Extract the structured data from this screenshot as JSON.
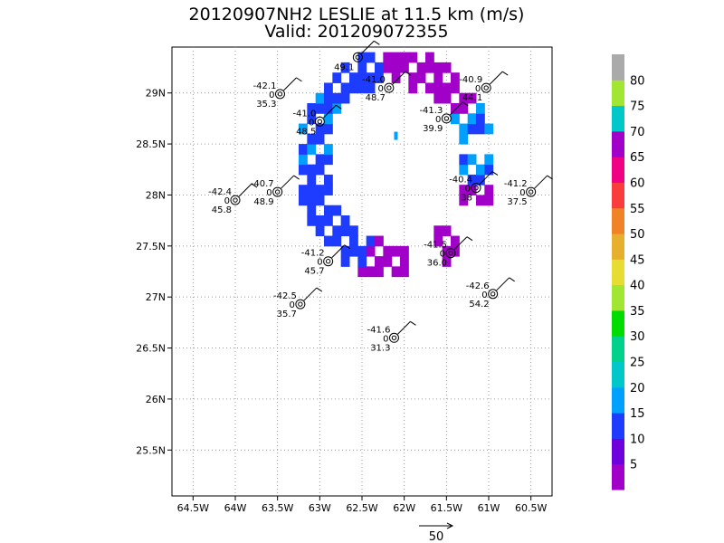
{
  "title_line1": "20120907NH2 LESLIE at 11.5 km (m/s)",
  "title_line2": "Valid: 201209072355",
  "chart_data": {
    "type": "heatmap",
    "description_units": "m/s",
    "x_axis": {
      "ticks": [
        -64.5,
        -64,
        -63.5,
        -63,
        -62.5,
        -62,
        -61.5,
        -61,
        -60.5
      ],
      "labels": [
        "64.5W",
        "64W",
        "63.5W",
        "63W",
        "62.5W",
        "62W",
        "61.5W",
        "61W",
        "60.5W"
      ],
      "range": [
        -64.75,
        -60.25
      ]
    },
    "y_axis": {
      "ticks": [
        25.5,
        26,
        26.5,
        27,
        27.5,
        28,
        28.5,
        29
      ],
      "labels": [
        "25.5N",
        "26N",
        "26.5N",
        "27N",
        "27.5N",
        "28N",
        "28.5N",
        "29N"
      ],
      "range": [
        25.05,
        29.45
      ]
    },
    "grid": true,
    "colorbar": {
      "levels": [
        "5",
        "10",
        "15",
        "20",
        "25",
        "30",
        "35",
        "40",
        "45",
        "50",
        "55",
        "60",
        "65",
        "70",
        "75",
        "80"
      ],
      "colors": [
        "#a000c8",
        "#6e00dc",
        "#1e3cff",
        "#00a0ff",
        "#00c8c8",
        "#00d28c",
        "#00dc00",
        "#a0e632",
        "#e6dc32",
        "#e6af2d",
        "#f08228",
        "#fa3c3c",
        "#f00082",
        "#a000c8",
        "#00c8c8",
        "#a0e632",
        "#aaaaaa"
      ]
    },
    "observations": [
      {
        "lon": -63.47,
        "lat": 28.99,
        "t": "-42.1",
        "mid": "0",
        "val": "35.3"
      },
      {
        "lon": -62.18,
        "lat": 29.05,
        "t": "-41.0",
        "mid": "0",
        "val": "48.7"
      },
      {
        "lon": -62.55,
        "lat": 29.35,
        "t": "",
        "mid": "",
        "val": "49.1"
      },
      {
        "lon": -61.03,
        "lat": 29.05,
        "t": "-40.9",
        "mid": "0",
        "val": "44.1"
      },
      {
        "lon": -63.0,
        "lat": 28.72,
        "t": "-41.0",
        "mid": "0",
        "val": "48.5"
      },
      {
        "lon": -61.5,
        "lat": 28.75,
        "t": "-41.3",
        "mid": "0",
        "val": "39.9"
      },
      {
        "lon": -63.5,
        "lat": 28.03,
        "t": "-40.7",
        "mid": "0",
        "val": "48.9"
      },
      {
        "lon": -64.0,
        "lat": 27.95,
        "t": "-42.4",
        "mid": "0",
        "val": "45.8"
      },
      {
        "lon": -61.15,
        "lat": 28.07,
        "t": "-40.4",
        "mid": "0",
        "val": "38"
      },
      {
        "lon": -60.5,
        "lat": 28.03,
        "t": "-41.2",
        "mid": "0",
        "val": "37.5"
      },
      {
        "lon": -62.9,
        "lat": 27.35,
        "t": "-41.2",
        "mid": "0",
        "val": "45.7"
      },
      {
        "lon": -61.45,
        "lat": 27.43,
        "t": "-41.5",
        "mid": "0",
        "val": "36.0"
      },
      {
        "lon": -63.23,
        "lat": 26.93,
        "t": "-42.5",
        "mid": "0",
        "val": "35.7"
      },
      {
        "lon": -60.95,
        "lat": 27.03,
        "t": "-42.6",
        "mid": "0",
        "val": "54.2"
      },
      {
        "lon": -62.12,
        "lat": 26.6,
        "t": "-41.6",
        "mid": "0",
        "val": "31.3"
      }
    ],
    "reference_vector_label": "50"
  }
}
